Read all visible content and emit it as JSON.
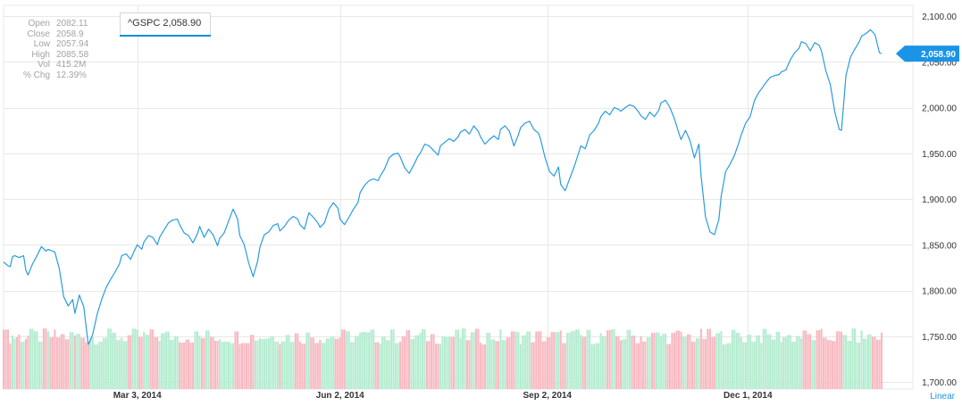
{
  "colors": {
    "price_line": "#2a9be0",
    "price_tag": "#1a94e6",
    "volume_up": "#b4ecd0",
    "volume_down": "#f8b9c1",
    "grid": "#e8e8e8",
    "axis_text": "#333333",
    "scale_label": "#1a94e6"
  },
  "ohlc": {
    "rows": [
      {
        "label": "Open",
        "value": "2082.11"
      },
      {
        "label": "Close",
        "value": "2058.9"
      },
      {
        "label": "Low",
        "value": "2057.94"
      },
      {
        "label": "High",
        "value": "2085.58"
      },
      {
        "label": "Vol",
        "value": "415.2M"
      },
      {
        "label": "% Chg",
        "value": "12.39%"
      }
    ]
  },
  "legend": {
    "label": "^GSPC 2,058.90"
  },
  "price_tag": "2,058.90",
  "scale_label": "Linear",
  "chart_data": {
    "type": "line",
    "series": [
      {
        "name": "^GSPC",
        "start": "2014-01-02",
        "points": [
          [
            0,
            1831
          ],
          [
            2,
            1827
          ],
          [
            3,
            1826
          ],
          [
            4,
            1837
          ],
          [
            5,
            1838
          ],
          [
            6,
            1837
          ],
          [
            7,
            1836
          ],
          [
            9,
            1838
          ],
          [
            10,
            1822
          ],
          [
            11,
            1817
          ],
          [
            13,
            1829
          ],
          [
            15,
            1838
          ],
          [
            17,
            1848
          ],
          [
            19,
            1843
          ],
          [
            20,
            1845
          ],
          [
            22,
            1843
          ],
          [
            23,
            1842
          ],
          [
            25,
            1824
          ],
          [
            27,
            1793
          ],
          [
            29,
            1783
          ],
          [
            31,
            1790
          ],
          [
            32,
            1775
          ],
          [
            34,
            1795
          ],
          [
            36,
            1782
          ],
          [
            38,
            1741
          ],
          [
            39,
            1746
          ],
          [
            40,
            1752
          ],
          [
            42,
            1774
          ],
          [
            44,
            1790
          ],
          [
            46,
            1803
          ],
          [
            48,
            1812
          ],
          [
            50,
            1820
          ],
          [
            52,
            1829
          ],
          [
            53,
            1838
          ],
          [
            55,
            1840
          ],
          [
            57,
            1834
          ],
          [
            59,
            1845
          ],
          [
            60,
            1850
          ],
          [
            62,
            1845
          ],
          [
            63,
            1853
          ],
          [
            65,
            1860
          ],
          [
            67,
            1858
          ],
          [
            69,
            1850
          ],
          [
            70,
            1858
          ],
          [
            72,
            1866
          ],
          [
            74,
            1874
          ],
          [
            76,
            1877
          ],
          [
            78,
            1878
          ],
          [
            79,
            1872
          ],
          [
            81,
            1863
          ],
          [
            83,
            1860
          ],
          [
            85,
            1852
          ],
          [
            87,
            1862
          ],
          [
            88,
            1870
          ],
          [
            90,
            1858
          ],
          [
            92,
            1867
          ],
          [
            94,
            1861
          ],
          [
            96,
            1849
          ],
          [
            97,
            1857
          ],
          [
            99,
            1863
          ],
          [
            101,
            1876
          ],
          [
            103,
            1889
          ],
          [
            105,
            1878
          ],
          [
            106,
            1860
          ],
          [
            108,
            1850
          ],
          [
            110,
            1830
          ],
          [
            112,
            1815
          ],
          [
            114,
            1832
          ],
          [
            115,
            1847
          ],
          [
            117,
            1861
          ],
          [
            119,
            1864
          ],
          [
            121,
            1871
          ],
          [
            123,
            1873
          ],
          [
            124,
            1865
          ],
          [
            126,
            1870
          ],
          [
            128,
            1877
          ],
          [
            130,
            1881
          ],
          [
            132,
            1878
          ],
          [
            133,
            1872
          ],
          [
            135,
            1867
          ],
          [
            137,
            1885
          ],
          [
            139,
            1880
          ],
          [
            141,
            1874
          ],
          [
            142,
            1869
          ],
          [
            144,
            1874
          ],
          [
            146,
            1889
          ],
          [
            148,
            1896
          ],
          [
            150,
            1890
          ],
          [
            151,
            1878
          ],
          [
            153,
            1872
          ],
          [
            155,
            1880
          ],
          [
            157,
            1889
          ],
          [
            159,
            1896
          ],
          [
            160,
            1907
          ],
          [
            162,
            1915
          ],
          [
            164,
            1920
          ],
          [
            166,
            1922
          ],
          [
            168,
            1920
          ],
          [
            169,
            1925
          ],
          [
            171,
            1933
          ],
          [
            173,
            1945
          ],
          [
            175,
            1949
          ],
          [
            177,
            1950
          ],
          [
            178,
            1946
          ],
          [
            180,
            1934
          ],
          [
            182,
            1928
          ],
          [
            184,
            1937
          ],
          [
            186,
            1947
          ],
          [
            187,
            1950
          ],
          [
            189,
            1960
          ],
          [
            191,
            1958
          ],
          [
            193,
            1953
          ],
          [
            195,
            1948
          ],
          [
            196,
            1958
          ],
          [
            198,
            1962
          ],
          [
            200,
            1966
          ],
          [
            202,
            1963
          ],
          [
            204,
            1968
          ],
          [
            205,
            1973
          ],
          [
            207,
            1976
          ],
          [
            209,
            1971
          ],
          [
            211,
            1980
          ],
          [
            213,
            1974
          ],
          [
            214,
            1968
          ],
          [
            216,
            1960
          ],
          [
            218,
            1965
          ],
          [
            220,
            1969
          ],
          [
            222,
            1965
          ],
          [
            223,
            1976
          ],
          [
            225,
            1980
          ],
          [
            227,
            1974
          ],
          [
            229,
            1958
          ],
          [
            231,
            1970
          ],
          [
            232,
            1978
          ],
          [
            234,
            1983
          ],
          [
            236,
            1985
          ],
          [
            238,
            1976
          ],
          [
            240,
            1972
          ],
          [
            241,
            1965
          ],
          [
            243,
            1945
          ],
          [
            245,
            1930
          ],
          [
            247,
            1925
          ],
          [
            249,
            1935
          ],
          [
            250,
            1916
          ],
          [
            252,
            1909
          ],
          [
            254,
            1922
          ],
          [
            256,
            1935
          ],
          [
            258,
            1950
          ],
          [
            259,
            1958
          ],
          [
            261,
            1955
          ],
          [
            263,
            1970
          ],
          [
            265,
            1975
          ],
          [
            267,
            1983
          ],
          [
            268,
            1990
          ],
          [
            270,
            1996
          ],
          [
            272,
            1992
          ],
          [
            274,
            2000
          ],
          [
            276,
            1998
          ],
          [
            277,
            1996
          ],
          [
            279,
            2000
          ],
          [
            281,
            2003
          ],
          [
            283,
            2001
          ],
          [
            285,
            1995
          ],
          [
            286,
            1991
          ],
          [
            288,
            1987
          ],
          [
            290,
            1995
          ],
          [
            292,
            1990
          ],
          [
            294,
            1997
          ],
          [
            295,
            2005
          ],
          [
            297,
            2008
          ],
          [
            299,
            2000
          ],
          [
            301,
            1988
          ],
          [
            303,
            1972
          ],
          [
            304,
            1965
          ],
          [
            306,
            1975
          ],
          [
            308,
            1964
          ],
          [
            310,
            1945
          ],
          [
            312,
            1960
          ],
          [
            313,
            1925
          ],
          [
            315,
            1880
          ],
          [
            317,
            1864
          ],
          [
            319,
            1861
          ],
          [
            321,
            1878
          ],
          [
            322,
            1903
          ],
          [
            324,
            1930
          ],
          [
            326,
            1938
          ],
          [
            328,
            1948
          ],
          [
            330,
            1962
          ],
          [
            331,
            1970
          ],
          [
            333,
            1983
          ],
          [
            335,
            1990
          ],
          [
            337,
            2008
          ],
          [
            339,
            2017
          ],
          [
            340,
            2020
          ],
          [
            342,
            2027
          ],
          [
            344,
            2033
          ],
          [
            346,
            2035
          ],
          [
            348,
            2036
          ],
          [
            349,
            2039
          ],
          [
            351,
            2041
          ],
          [
            353,
            2052
          ],
          [
            355,
            2060
          ],
          [
            357,
            2065
          ],
          [
            358,
            2072
          ],
          [
            360,
            2070
          ],
          [
            362,
            2062
          ],
          [
            364,
            2071
          ],
          [
            366,
            2068
          ],
          [
            367,
            2062
          ],
          [
            369,
            2040
          ],
          [
            371,
            2025
          ],
          [
            373,
            1995
          ],
          [
            375,
            1976
          ],
          [
            376,
            1975
          ],
          [
            378,
            2035
          ],
          [
            380,
            2055
          ],
          [
            382,
            2064
          ],
          [
            384,
            2072
          ],
          [
            385,
            2078
          ],
          [
            387,
            2081
          ],
          [
            389,
            2085
          ],
          [
            391,
            2080
          ],
          [
            393,
            2060
          ],
          [
            394,
            2058.9
          ]
        ]
      }
    ],
    "volume": {
      "unit": "shares",
      "colors_note": "green = up day, red = down day"
    },
    "x_axis": {
      "ticks": [
        {
          "label": "Mar 3, 2014",
          "offset_days": 60
        },
        {
          "label": "Jun 2, 2014",
          "offset_days": 151
        },
        {
          "label": "Sep 2, 2014",
          "offset_days": 244
        },
        {
          "label": "Dec 1, 2014",
          "offset_days": 334
        }
      ]
    },
    "y_axis": {
      "ticks": [
        "2,100.00",
        "2,050.00",
        "2,000.00",
        "1,950.00",
        "1,900.00",
        "1,850.00",
        "1,800.00",
        "1,750.00",
        "1,700.00"
      ],
      "tick_values": [
        2100,
        2050,
        2000,
        1950,
        1900,
        1850,
        1800,
        1750,
        1700
      ],
      "ylim": [
        1700,
        2100
      ],
      "scale": "linear",
      "position": "right"
    },
    "grid": true
  }
}
